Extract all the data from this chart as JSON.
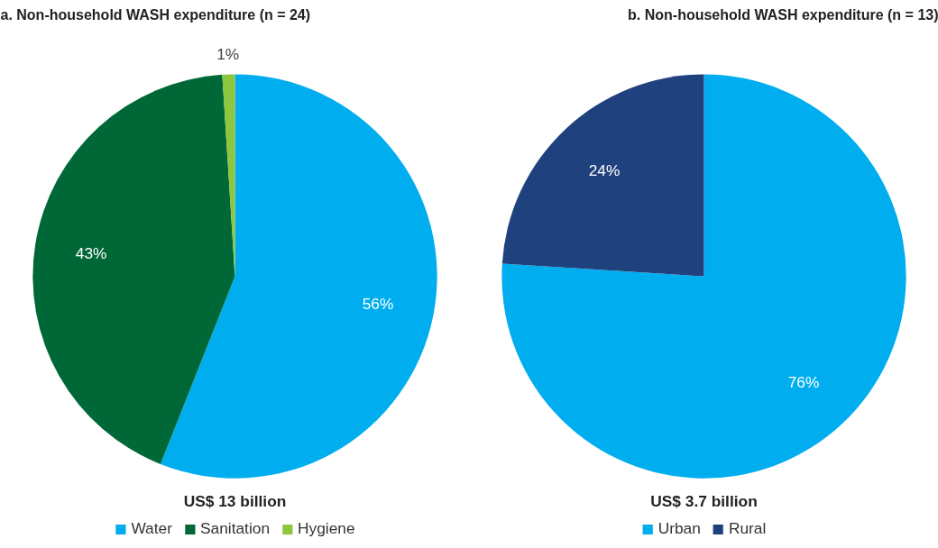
{
  "chart_data": [
    {
      "type": "pie",
      "title": "a. Non-household WASH expenditure (n = 24)",
      "categories": [
        "Water",
        "Sanitation",
        "Hygiene"
      ],
      "values": [
        56,
        43,
        1
      ],
      "colors": [
        "#00aeef",
        "#006837",
        "#8dc63f"
      ],
      "value_labels": [
        "56%",
        "43%",
        "1%"
      ],
      "annotations": [
        "US$ 13 billion"
      ],
      "legend": "bottom"
    },
    {
      "type": "pie",
      "title": "b. Non-household WASH expenditure (n = 13)",
      "categories": [
        "Urban",
        "Rural"
      ],
      "values": [
        76,
        24
      ],
      "colors": [
        "#00aeef",
        "#1f417d"
      ],
      "value_labels": [
        "76%",
        "24%"
      ],
      "annotations": [
        "US$ 3.7 billion"
      ],
      "legend": "bottom"
    }
  ]
}
